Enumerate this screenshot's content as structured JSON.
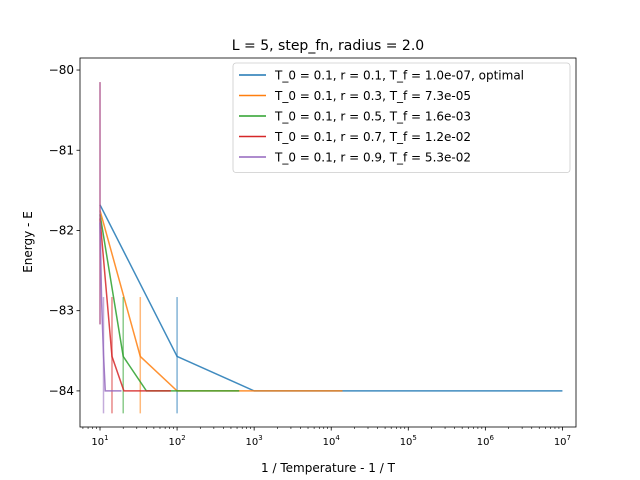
{
  "chart_data": {
    "type": "line",
    "title": "L = 5, step_fn, radius = 2.0",
    "xlabel": "1 / Temperature - 1 / T",
    "ylabel": "Energy - E",
    "xscale": "log",
    "xlim": [
      5.5,
      15000000
    ],
    "ylim": [
      -84.45,
      -79.85
    ],
    "x_ticks": [
      {
        "value": 10,
        "base": "10",
        "exp": "1"
      },
      {
        "value": 100,
        "base": "10",
        "exp": "2"
      },
      {
        "value": 1000,
        "base": "10",
        "exp": "3"
      },
      {
        "value": 10000,
        "base": "10",
        "exp": "4"
      },
      {
        "value": 100000,
        "base": "10",
        "exp": "5"
      },
      {
        "value": 1000000,
        "base": "10",
        "exp": "6"
      },
      {
        "value": 10000000,
        "base": "10",
        "exp": "7"
      }
    ],
    "y_ticks": [
      {
        "value": -80,
        "label": "−80"
      },
      {
        "value": -81,
        "label": "−81"
      },
      {
        "value": -82,
        "label": "−82"
      },
      {
        "value": -83,
        "label": "−83"
      },
      {
        "value": -84,
        "label": "−84"
      }
    ],
    "grid": false,
    "legend_position": "top-right",
    "series": [
      {
        "name": "T_0 = 0.1, r = 0.1, T_f = 1.0e-07, optimal",
        "color": "#1f77b4",
        "x": [
          10,
          100,
          1000,
          10000000
        ],
        "y": [
          -81.68,
          -83.57,
          -84.0,
          -84.0
        ],
        "errorbars": [
          {
            "x": 100,
            "low": -84.28,
            "high": -82.83
          }
        ]
      },
      {
        "name": "T_0 = 0.1, r = 0.3, T_f = 7.3e-05",
        "color": "#ff7f0e",
        "x": [
          10,
          33.3,
          100,
          14000
        ],
        "y": [
          -81.75,
          -83.57,
          -84.0,
          -84.0
        ],
        "errorbars": [
          {
            "x": 33.3,
            "low": -84.28,
            "high": -82.83
          }
        ]
      },
      {
        "name": "T_0 = 0.1, r = 0.5, T_f = 1.6e-03",
        "color": "#2ca02c",
        "x": [
          10,
          20,
          40,
          640
        ],
        "y": [
          -81.8,
          -83.57,
          -84.0,
          -84.0
        ],
        "errorbars": [
          {
            "x": 20,
            "low": -84.28,
            "high": -82.83
          }
        ]
      },
      {
        "name": "T_0 = 0.1, r = 0.7, T_f = 1.2e-02",
        "color": "#d62728",
        "x": [
          10,
          14.3,
          20.4,
          83
        ],
        "y": [
          -81.85,
          -83.57,
          -84.0,
          -84.0
        ],
        "errorbars": [
          {
            "x": 10,
            "low": -83.17,
            "high": -80.15
          },
          {
            "x": 14.3,
            "low": -84.28,
            "high": -82.83
          }
        ]
      },
      {
        "name": "T_0 = 0.1, r = 0.9, T_f = 5.3e-02",
        "color": "#9467bd",
        "x": [
          10,
          10.5,
          11.1,
          11.7,
          12.3,
          13.0,
          14.0,
          19.0
        ],
        "y": [
          -81.9,
          -82.9,
          -83.55,
          -84.0,
          -84.0,
          -84.0,
          -84.0,
          -84.0
        ],
        "errorbars": [
          {
            "x": 10,
            "low": -83.17,
            "high": -80.15
          },
          {
            "x": 11.1,
            "low": -84.28,
            "high": -82.83
          }
        ]
      }
    ]
  }
}
